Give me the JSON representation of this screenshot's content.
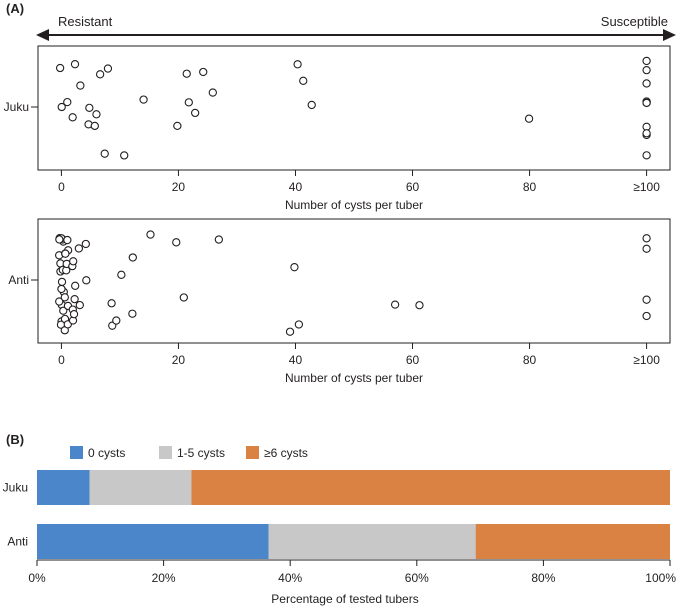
{
  "panel_a": {
    "label": "(A)",
    "arrow_left": "Resistant",
    "arrow_right": "Susceptible"
  },
  "panel_b": {
    "label": "(B)"
  },
  "colors": {
    "zero": "#4a86c9",
    "low": "#c8c8c8",
    "high": "#d98243",
    "ink": "#231f20"
  },
  "chart_data": [
    {
      "type": "scatter",
      "title": "Juku",
      "category_label": "Juku",
      "xlabel": "Number of cysts per tuber",
      "xlim": [
        -4,
        104
      ],
      "xticks": [
        0,
        20,
        40,
        60,
        80,
        100
      ],
      "xticklabels": [
        "0",
        "20",
        "40",
        "60",
        "80",
        "≥100"
      ],
      "note": "points are vertically jittered around the category",
      "x": [
        0,
        0,
        1,
        2,
        2,
        3,
        5,
        5,
        6,
        6,
        7,
        7,
        8,
        11,
        14,
        20,
        21,
        22,
        23,
        24,
        26,
        40,
        41,
        43,
        80,
        100,
        100,
        100,
        100,
        100,
        100,
        100,
        100,
        100,
        100,
        100
      ]
    },
    {
      "type": "scatter",
      "title": "Anti",
      "category_label": "Anti",
      "xlabel": "Number of cysts per tuber",
      "xlim": [
        -4,
        104
      ],
      "xticks": [
        0,
        20,
        40,
        60,
        80,
        100
      ],
      "xticklabels": [
        "0",
        "20",
        "40",
        "60",
        "80",
        "≥100"
      ],
      "note": "points are vertically jittered around the category",
      "x": [
        0,
        0,
        0,
        0,
        0,
        0,
        0,
        0,
        0,
        0,
        0,
        0,
        0,
        0,
        0,
        0,
        0,
        0,
        1,
        1,
        1,
        1,
        1,
        1,
        1,
        1,
        1,
        1,
        1,
        2,
        2,
        2,
        2,
        2,
        2,
        2,
        3,
        3,
        4,
        4,
        9,
        9,
        9,
        10,
        12,
        12,
        15,
        20,
        21,
        27,
        39,
        40,
        41,
        57,
        61,
        100,
        100,
        100,
        100
      ]
    },
    {
      "type": "bar",
      "orientation": "horizontal",
      "stacked": true,
      "categories": [
        "Juku",
        "Anti"
      ],
      "series": [
        {
          "name": "0 cysts",
          "values": [
            8.3,
            36.6
          ]
        },
        {
          "name": "1-5 cysts",
          "values": [
            16.1,
            32.7
          ]
        },
        {
          "name": "≥6 cysts",
          "values": [
            75.6,
            30.7
          ]
        }
      ],
      "xlabel": "Percentage of tested tubers",
      "xlim": [
        0,
        100
      ],
      "xticks": [
        0,
        20,
        40,
        60,
        80,
        100
      ],
      "xticklabels": [
        "0%",
        "20%",
        "40%",
        "60%",
        "80%",
        "100%"
      ],
      "legend": "top"
    }
  ]
}
